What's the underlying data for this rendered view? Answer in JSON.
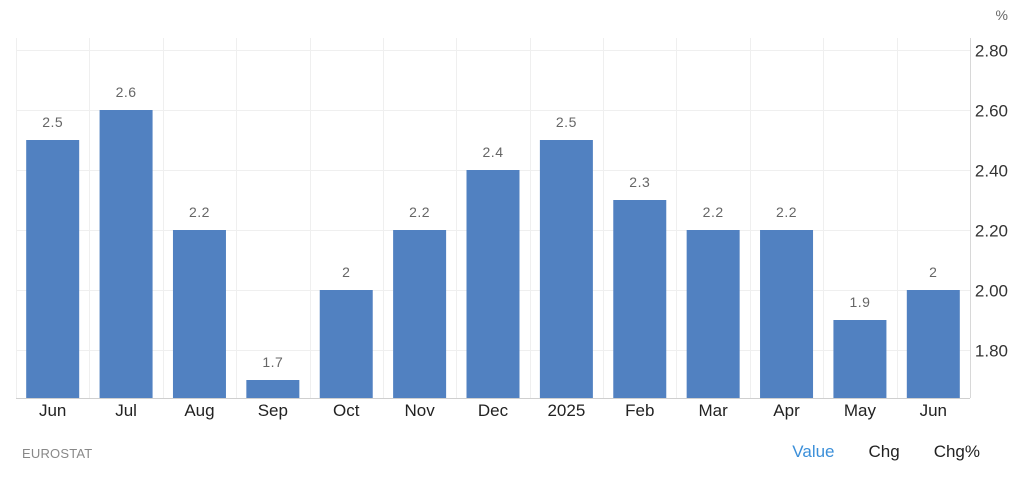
{
  "chart_data": {
    "type": "bar",
    "unit_label": "%",
    "categories": [
      "Jun",
      "Jul",
      "Aug",
      "Sep",
      "Oct",
      "Nov",
      "Dec",
      "2025",
      "Feb",
      "Mar",
      "Apr",
      "May",
      "Jun"
    ],
    "values": [
      2.5,
      2.6,
      2.2,
      1.7,
      2,
      2.2,
      2.4,
      2.5,
      2.3,
      2.2,
      2.2,
      1.9,
      2
    ],
    "value_labels": [
      "2.5",
      "2.6",
      "2.2",
      "1.7",
      "2",
      "2.2",
      "2.4",
      "2.5",
      "2.3",
      "2.2",
      "2.2",
      "1.9",
      "2"
    ],
    "y_ticks": [
      "1.80",
      "2.00",
      "2.20",
      "2.40",
      "2.60",
      "2.80"
    ],
    "ylim": [
      1.64,
      2.84
    ],
    "y_axis_side": "right",
    "grid": true,
    "bar_color": "#5181c1"
  },
  "footer": {
    "source": "EUROSTAT",
    "tabs": [
      {
        "label": "Value",
        "active": true
      },
      {
        "label": "Chg",
        "active": false
      },
      {
        "label": "Chg%",
        "active": false
      }
    ]
  }
}
